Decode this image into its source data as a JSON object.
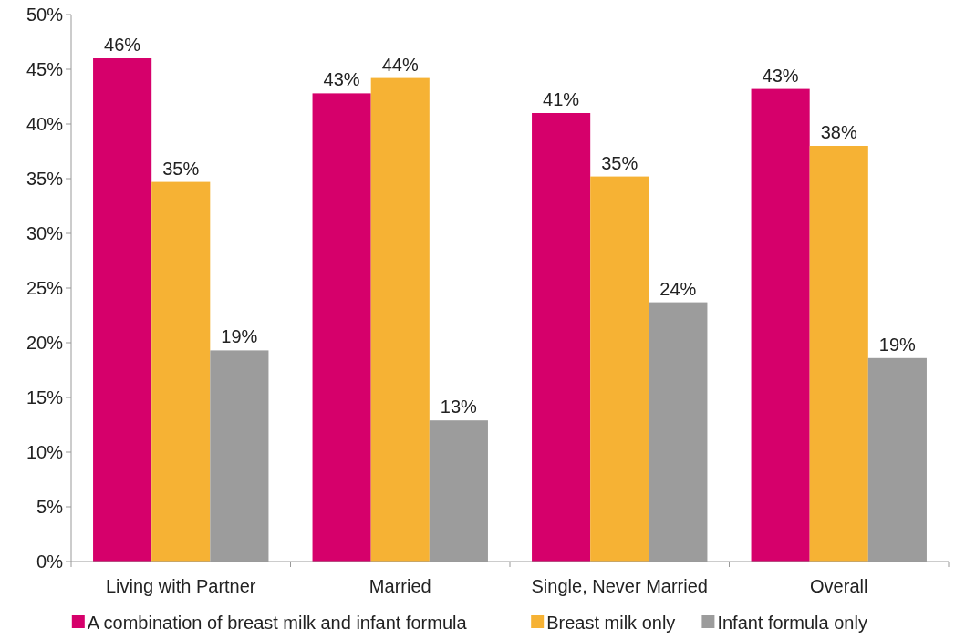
{
  "chart_data": {
    "type": "bar",
    "categories": [
      "Living with Partner",
      "Married",
      "Single, Never Married",
      "Overall"
    ],
    "series": [
      {
        "name": "A combination of breast milk and infant formula",
        "color": "#d6006b",
        "values": [
          46.0,
          42.8,
          41.0,
          43.2
        ],
        "value_labels": [
          "46%",
          "43%",
          "41%",
          "43%"
        ]
      },
      {
        "name": "Breast milk only",
        "color": "#f6b234",
        "values": [
          34.7,
          44.2,
          35.2,
          38.0
        ],
        "value_labels": [
          "35%",
          "44%",
          "35%",
          "38%"
        ]
      },
      {
        "name": "Infant formula only",
        "color": "#9c9c9c",
        "values": [
          19.3,
          12.9,
          23.7,
          18.6
        ],
        "value_labels": [
          "19%",
          "13%",
          "24%",
          "19%"
        ]
      }
    ],
    "ylim": [
      0,
      50
    ],
    "yticks": [
      {
        "value": 0,
        "label": "0%"
      },
      {
        "value": 5,
        "label": "5%"
      },
      {
        "value": 10,
        "label": "10%"
      },
      {
        "value": 15,
        "label": "15%"
      },
      {
        "value": 20,
        "label": "20%"
      },
      {
        "value": 25,
        "label": "25%"
      },
      {
        "value": 30,
        "label": "30%"
      },
      {
        "value": 35,
        "label": "35%"
      },
      {
        "value": 40,
        "label": "40%"
      },
      {
        "value": 45,
        "label": "45%"
      },
      {
        "value": 50,
        "label": "50%"
      }
    ],
    "legend": "bottom"
  }
}
